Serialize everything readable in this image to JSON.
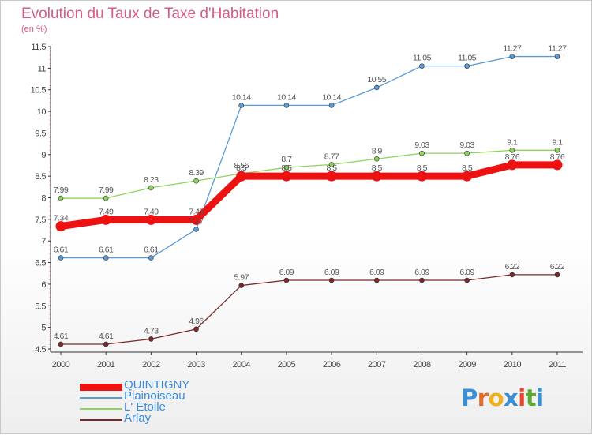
{
  "title": "Evolution du Taux de Taxe d'Habitation",
  "subtitle": "(en %)",
  "logo_text": "Proxiti",
  "chart_data": {
    "type": "line",
    "x": [
      "2000",
      "2001",
      "2002",
      "2003",
      "2004",
      "2005",
      "2006",
      "2007",
      "2008",
      "2009",
      "2010",
      "2011"
    ],
    "ylim": [
      4.5,
      11.5
    ],
    "yticks": [
      "4.5",
      "5",
      "5.5",
      "6",
      "6.5",
      "7",
      "7.5",
      "8",
      "8.5",
      "9",
      "9.5",
      "10",
      "10.5",
      "11",
      "11.5"
    ],
    "series": [
      {
        "name": "QUINTIGNY",
        "color": "#ee1111",
        "values": [
          7.34,
          7.49,
          7.49,
          7.49,
          8.5,
          8.5,
          8.5,
          8.5,
          8.5,
          8.5,
          8.76,
          8.76
        ],
        "labels": [
          "7.34",
          "7.49",
          "7.49",
          "7.49",
          "8.5",
          "8.5",
          "8.5",
          "8.5",
          "8.5",
          "8.5",
          "8.76",
          "8.76"
        ]
      },
      {
        "name": "Plainoiseau",
        "color": "#5b9bd5",
        "values": [
          6.61,
          6.61,
          6.61,
          7.27,
          10.14,
          10.14,
          10.14,
          10.55,
          11.05,
          11.05,
          11.27,
          11.27
        ],
        "labels": [
          "6.61",
          "6.61",
          "6.61",
          "7.27",
          "10.14",
          "10.14",
          "10.14",
          "10.55",
          "11.05",
          "11.05",
          "11.27",
          "11.27"
        ]
      },
      {
        "name": "L' Etoile",
        "color": "#8fd45a",
        "values": [
          7.99,
          7.99,
          8.23,
          8.39,
          8.56,
          8.7,
          8.77,
          8.9,
          9.03,
          9.03,
          9.1,
          9.1
        ],
        "labels": [
          "7.99",
          "7.99",
          "8.23",
          "8.39",
          "8.56",
          "8.7",
          "8.77",
          "8.9",
          "9.03",
          "9.03",
          "9.1",
          "9.1"
        ]
      },
      {
        "name": "Arlay",
        "color": "#7a2a2a",
        "values": [
          4.61,
          4.61,
          4.73,
          4.96,
          5.97,
          6.09,
          6.09,
          6.09,
          6.09,
          6.09,
          6.22,
          6.22
        ],
        "labels": [
          "4.61",
          "4.61",
          "4.73",
          "4.96",
          "5.97",
          "6.09",
          "6.09",
          "6.09",
          "6.09",
          "6.09",
          "6.22",
          "6.22"
        ]
      }
    ]
  }
}
